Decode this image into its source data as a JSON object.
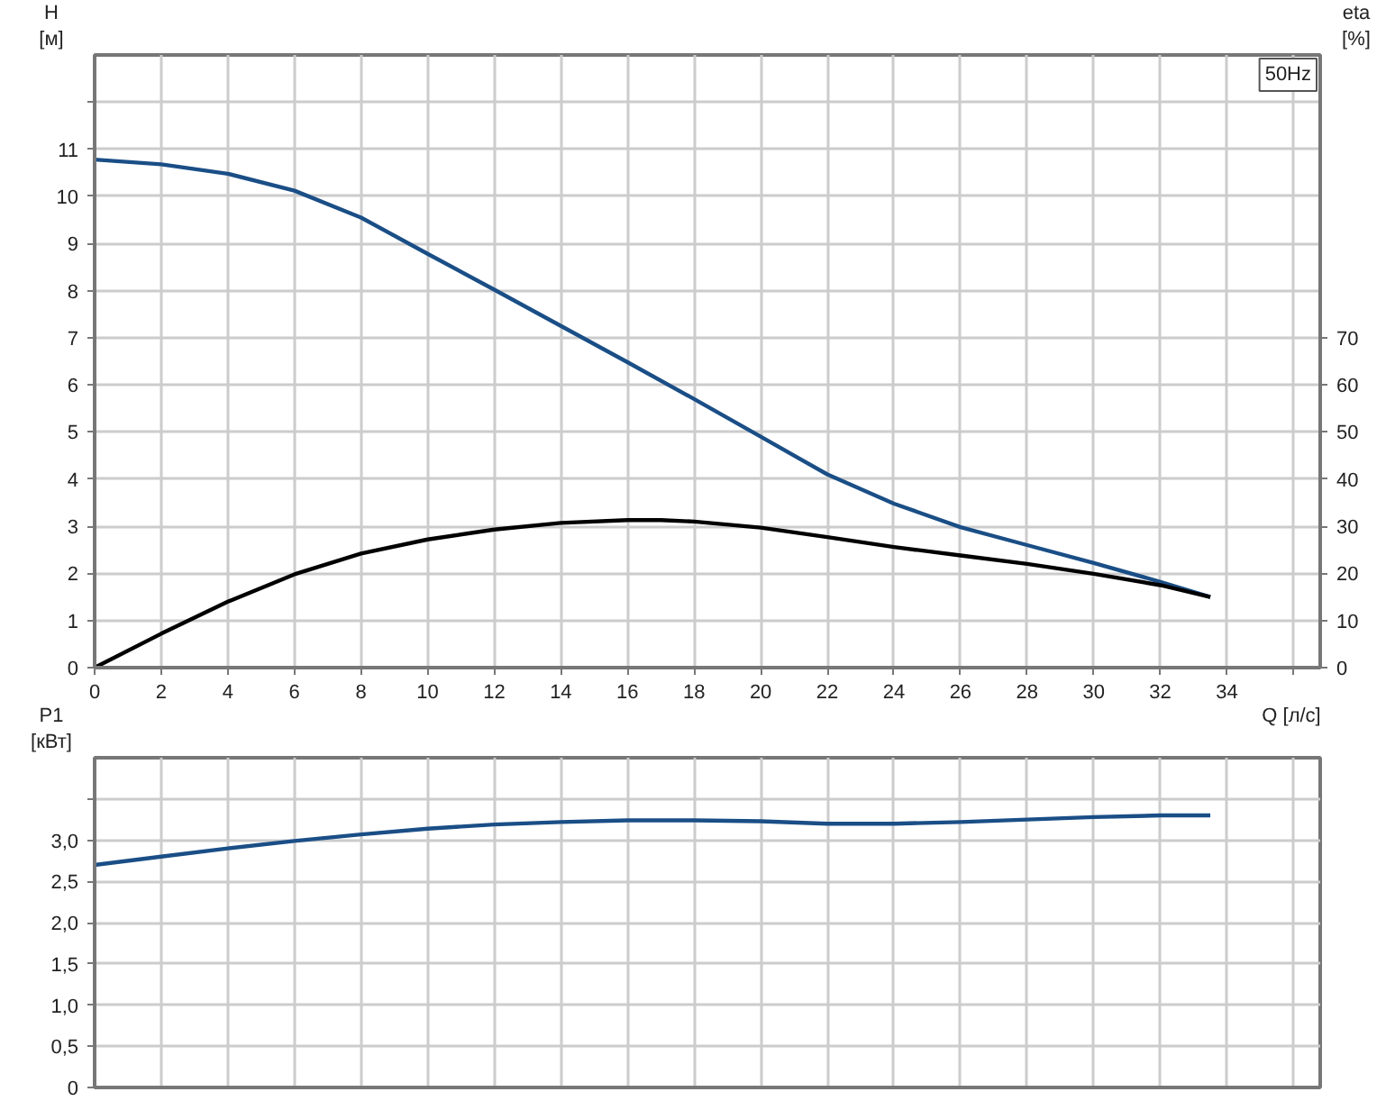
{
  "chart_data": [
    {
      "type": "line",
      "ylabel": "H\n[м]",
      "y2label": "eta\n[%]",
      "xlabel": "Q [л/с]",
      "annotations": [
        "50Hz"
      ],
      "grid": true,
      "xlim": [
        0,
        36.8
      ],
      "xticks": [
        0,
        2,
        4,
        6,
        8,
        10,
        12,
        14,
        16,
        18,
        20,
        22,
        24,
        26,
        28,
        30,
        32,
        34,
        {
          "value": 36,
          "label": null
        }
      ],
      "ylim": [
        0,
        13
      ],
      "yticks": [
        0,
        1,
        2,
        3,
        4,
        5,
        6,
        7,
        8,
        9,
        10,
        11,
        {
          "value": 12,
          "label": null
        }
      ],
      "y2lim": [
        0,
        130
      ],
      "y2ticks": [
        0,
        10,
        20,
        30,
        40,
        50,
        60,
        70
      ],
      "series": [
        {
          "color": "#1a4e86",
          "x": [
            0,
            2,
            4,
            6,
            8,
            10,
            12,
            14,
            16,
            18,
            20,
            22,
            24,
            26,
            28,
            30,
            32,
            33.5
          ],
          "values": [
            10.78,
            10.68,
            10.48,
            10.12,
            9.55,
            8.78,
            8.02,
            7.25,
            6.48,
            5.7,
            4.9,
            4.1,
            3.48,
            2.98,
            2.6,
            2.22,
            1.82,
            1.5
          ]
        },
        {
          "color": "#000000",
          "axis": "y2",
          "x": [
            0,
            2,
            4,
            6,
            8,
            10,
            12,
            14,
            16,
            17,
            18,
            20,
            22,
            24,
            26,
            28,
            30,
            32,
            33.5
          ],
          "values": [
            0,
            7.2,
            14,
            19.8,
            24.2,
            27.2,
            29.3,
            30.7,
            31.3,
            31.3,
            31,
            29.7,
            27.7,
            25.6,
            23.8,
            22,
            19.9,
            17.5,
            15
          ]
        }
      ]
    },
    {
      "type": "line",
      "ylabel": "P1\n[кВт]",
      "grid": true,
      "tick_labels": "y",
      "xlim": [
        0,
        36.8
      ],
      "xticks": [
        0,
        2,
        4,
        6,
        8,
        10,
        12,
        14,
        16,
        18,
        20,
        22,
        24,
        26,
        28,
        30,
        32,
        34,
        36
      ],
      "ylim": [
        0,
        4
      ],
      "yticks": [
        {
          "value": 0,
          "label": "0"
        },
        {
          "value": 0.5,
          "label": "0,5"
        },
        {
          "value": 1,
          "label": "1,0"
        },
        {
          "value": 1.5,
          "label": "1,5"
        },
        {
          "value": 2,
          "label": "2,0"
        },
        {
          "value": 2.5,
          "label": "2,5"
        },
        {
          "value": 3,
          "label": "3,0"
        },
        {
          "value": 3.5,
          "label": null
        }
      ],
      "series": [
        {
          "color": "#1a4e86",
          "x": [
            0,
            2,
            4,
            6,
            8,
            10,
            12,
            14,
            16,
            18,
            20,
            22,
            24,
            26,
            28,
            30,
            32,
            33.5
          ],
          "values": [
            2.7,
            2.8,
            2.9,
            2.99,
            3.07,
            3.14,
            3.19,
            3.22,
            3.24,
            3.24,
            3.23,
            3.2,
            3.2,
            3.22,
            3.25,
            3.28,
            3.3,
            3.3
          ]
        }
      ]
    }
  ]
}
